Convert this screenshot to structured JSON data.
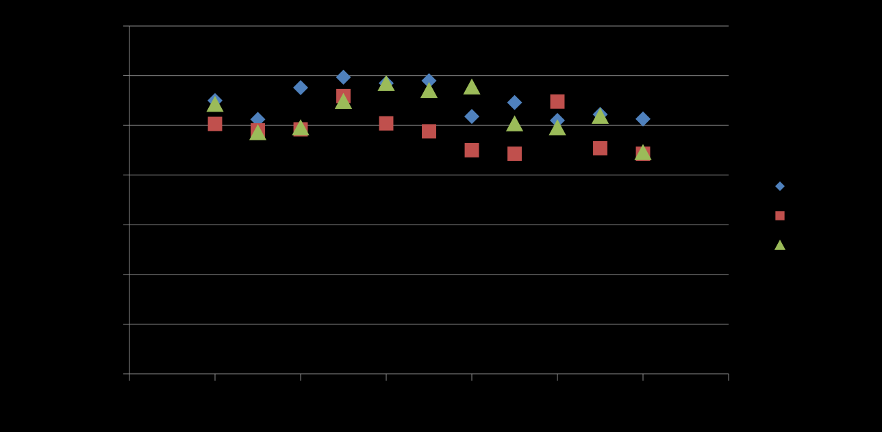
{
  "chart_data": {
    "type": "scatter",
    "title": "",
    "xlabel": "",
    "ylabel": "",
    "xlim": [
      0,
      14
    ],
    "ylim": [
      0,
      7
    ],
    "grid": true,
    "legend_position": "right",
    "colors": {
      "background": "#000000",
      "grid": "#8c8c8c",
      "axis": "#8c8c8c"
    },
    "series": [
      {
        "name": "",
        "marker": "diamond",
        "color": "#4f81bd",
        "points": [
          [
            2,
            5.5
          ],
          [
            3,
            5.12
          ],
          [
            4,
            5.76
          ],
          [
            5,
            5.97
          ],
          [
            6,
            5.85
          ],
          [
            7,
            5.9
          ],
          [
            8,
            5.18
          ],
          [
            9,
            5.46
          ],
          [
            10,
            5.1
          ],
          [
            11,
            5.22
          ],
          [
            12,
            5.13
          ]
        ]
      },
      {
        "name": "",
        "marker": "square",
        "color": "#c0504d",
        "points": [
          [
            2,
            5.03
          ],
          [
            3,
            4.9
          ],
          [
            4,
            4.92
          ],
          [
            5,
            5.59
          ],
          [
            6,
            5.04
          ],
          [
            7,
            4.88
          ],
          [
            8,
            4.5
          ],
          [
            9,
            4.43
          ],
          [
            10,
            5.48
          ],
          [
            11,
            4.54
          ],
          [
            12,
            4.43
          ]
        ]
      },
      {
        "name": "",
        "marker": "triangle",
        "color": "#9bbb59",
        "points": [
          [
            2,
            5.42
          ],
          [
            3,
            4.85
          ],
          [
            4,
            4.95
          ],
          [
            5,
            5.48
          ],
          [
            6,
            5.84
          ],
          [
            7,
            5.7
          ],
          [
            8,
            5.77
          ],
          [
            9,
            5.03
          ],
          [
            10,
            4.95
          ],
          [
            11,
            5.18
          ],
          [
            12,
            4.45
          ]
        ]
      }
    ]
  }
}
